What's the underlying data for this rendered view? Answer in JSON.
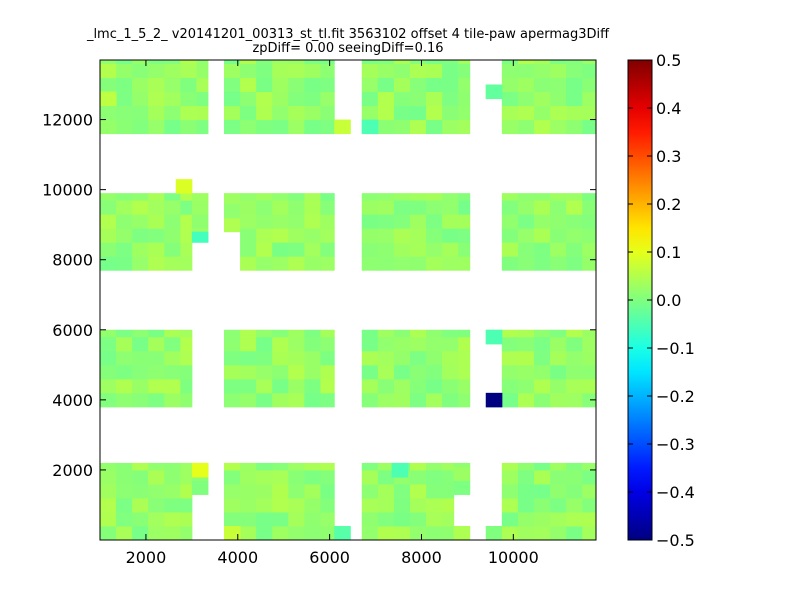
{
  "chart_data": {
    "type": "heatmap",
    "title_line1": "_lmc_1_5_2_ v20141201_00313_st_tl.fit 3563102 offset 4 tile-paw apermag3Diff",
    "title_line2": "zpDiff= 0.00 seeingDiff=0.16",
    "xlabel": "",
    "ylabel": "",
    "xlim": [
      1000,
      11800
    ],
    "ylim": [
      0,
      13700
    ],
    "xticks": [
      2000,
      4000,
      6000,
      8000,
      10000
    ],
    "yticks": [
      2000,
      4000,
      6000,
      8000,
      10000,
      12000
    ],
    "colormap": "jet",
    "colorbar": {
      "vmin": -0.5,
      "vmax": 0.5,
      "ticks": [
        0.5,
        0.4,
        0.3,
        0.2,
        0.1,
        0.0,
        -0.1,
        -0.2,
        -0.3,
        -0.4,
        -0.5
      ],
      "tick_labels": [
        "0.5",
        "0.4",
        "0.3",
        "0.2",
        "0.1",
        "0.0",
        "−0.1",
        "−0.2",
        "−0.3",
        "−0.4",
        "−0.5"
      ]
    },
    "cell_size": [
      350,
      400
    ],
    "base_value": 0.02,
    "detectors": [
      {
        "x": [
          1000,
          3000
        ],
        "y": [
          0,
          2200
        ]
      },
      {
        "x": [
          3000,
          3350
        ],
        "y": [
          1300,
          2200
        ]
      },
      {
        "x": [
          3700,
          6100
        ],
        "y": [
          0,
          2200
        ]
      },
      {
        "x": [
          6700,
          8700
        ],
        "y": [
          0,
          2200
        ]
      },
      {
        "x": [
          8700,
          9050
        ],
        "y": [
          0,
          400
        ]
      },
      {
        "x": [
          8700,
          9050
        ],
        "y": [
          1300,
          2200
        ]
      },
      {
        "x": [
          9400,
          9750
        ],
        "y": [
          0,
          400
        ]
      },
      {
        "x": [
          9750,
          11800
        ],
        "y": [
          0,
          2200
        ]
      },
      {
        "x": [
          1000,
          3000
        ],
        "y": [
          3800,
          6000
        ]
      },
      {
        "x": [
          3700,
          6100
        ],
        "y": [
          3800,
          6000
        ]
      },
      {
        "x": [
          6700,
          9050
        ],
        "y": [
          3800,
          6000
        ]
      },
      {
        "x": [
          9400,
          9750
        ],
        "y": [
          3800,
          4200
        ]
      },
      {
        "x": [
          9400,
          9750
        ],
        "y": [
          5600,
          6000
        ]
      },
      {
        "x": [
          9750,
          11800
        ],
        "y": [
          3800,
          6000
        ]
      },
      {
        "x": [
          1000,
          3000
        ],
        "y": [
          7700,
          9900
        ]
      },
      {
        "x": [
          3000,
          3350
        ],
        "y": [
          8500,
          9900
        ]
      },
      {
        "x": [
          3700,
          4050
        ],
        "y": [
          8800,
          9900
        ]
      },
      {
        "x": [
          4050,
          6100
        ],
        "y": [
          7700,
          9900
        ]
      },
      {
        "x": [
          6700,
          9050
        ],
        "y": [
          7700,
          9900
        ]
      },
      {
        "x": [
          9750,
          11800
        ],
        "y": [
          7700,
          9900
        ]
      },
      {
        "x": [
          1000,
          3350
        ],
        "y": [
          11600,
          13700
        ]
      },
      {
        "x": [
          3700,
          6100
        ],
        "y": [
          11600,
          13700
        ]
      },
      {
        "x": [
          6700,
          9050
        ],
        "y": [
          11600,
          13700
        ]
      },
      {
        "x": [
          9400,
          9750
        ],
        "y": [
          12600,
          13000
        ]
      },
      {
        "x": [
          9750,
          11800
        ],
        "y": [
          11600,
          13700
        ]
      }
    ],
    "holes": [
      {
        "x": [
          7350,
          7700
        ],
        "y": [
          400,
          800
        ]
      },
      {
        "x": [
          4050,
          4400
        ],
        "y": [
          7700,
          8000
        ]
      }
    ],
    "special_cells": [
      {
        "x": [
          9400,
          9750
        ],
        "y": [
          3800,
          4200
        ],
        "value": -0.5
      },
      {
        "x": [
          2650,
          3000
        ],
        "y": [
          9900,
          10300
        ],
        "value": 0.09
      },
      {
        "x": [
          3000,
          3350
        ],
        "y": [
          1800,
          2200
        ],
        "value": 0.1
      },
      {
        "x": [
          3000,
          3350
        ],
        "y": [
          8500,
          8800
        ],
        "value": -0.06
      },
      {
        "x": [
          9400,
          9750
        ],
        "y": [
          12600,
          13000
        ],
        "value": -0.03
      },
      {
        "x": [
          7350,
          7700
        ],
        "y": [
          1800,
          2200
        ],
        "value": -0.05
      },
      {
        "x": [
          9400,
          9750
        ],
        "y": [
          5600,
          6000
        ],
        "value": -0.05
      },
      {
        "x": [
          6700,
          7050
        ],
        "y": [
          11600,
          12000
        ],
        "value": -0.05
      },
      {
        "x": [
          6100,
          6450
        ],
        "y": [
          11600,
          12000
        ],
        "value": 0.07
      },
      {
        "x": [
          3700,
          4050
        ],
        "y": [
          0,
          400
        ],
        "value": 0.07
      },
      {
        "x": [
          6100,
          6450
        ],
        "y": [
          0,
          400
        ],
        "value": -0.04
      },
      {
        "x": [
          1000,
          1350
        ],
        "y": [
          12400,
          12800
        ],
        "value": 0.06
      }
    ]
  }
}
